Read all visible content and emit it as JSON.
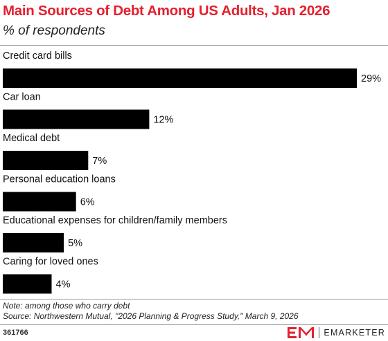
{
  "header": {
    "title": "Main Sources of Debt Among US Adults, Jan 2026",
    "subtitle": "% of respondents"
  },
  "chart_data": {
    "type": "bar",
    "orientation": "horizontal",
    "categories": [
      "Credit card bills",
      "Car loan",
      "Medical debt",
      "Personal education loans",
      "Educational expenses for children/family members",
      "Caring for loved ones"
    ],
    "values": [
      29,
      12,
      7,
      6,
      5,
      4
    ],
    "value_labels": [
      "29%",
      "12%",
      "7%",
      "6%",
      "5%",
      "4%"
    ],
    "title": "Main Sources of Debt Among US Adults, Jan 2026",
    "subtitle": "% of respondents",
    "xlabel": "",
    "ylabel": "",
    "xlim": [
      0,
      29
    ],
    "grid": false,
    "bar_color": "#000000"
  },
  "footer": {
    "note": "Note: among those who carry debt",
    "source": "Source: Northwestern Mutual, \"2026 Planning & Progress Study,\" March 9, 2026",
    "chart_id": "361766",
    "brand": "EMARKETER"
  },
  "colors": {
    "title": "#e5202e",
    "bars": "#000000",
    "logo_mark": "#e5202e"
  }
}
